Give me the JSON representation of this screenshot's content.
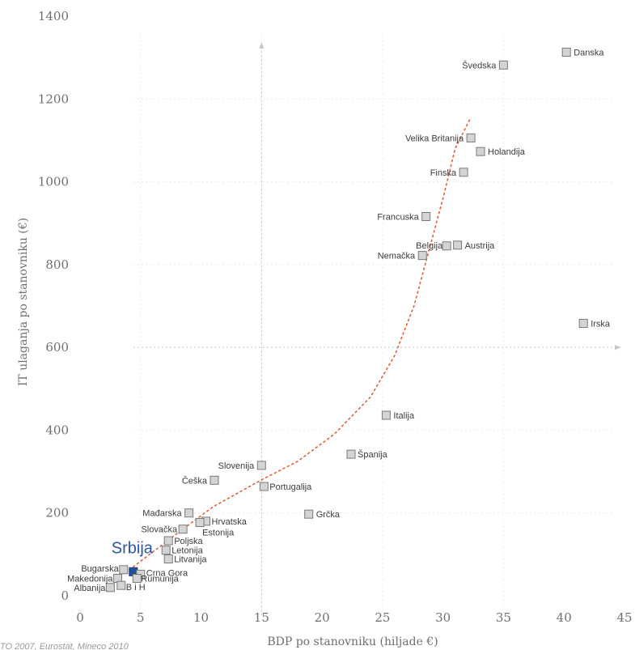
{
  "chart_data": {
    "type": "scatter",
    "xlabel": "BDP po stanovniku (hiljade €)",
    "ylabel": "IT ulaganja po stanovniku (€)",
    "xlim": [
      0,
      45
    ],
    "ylim": [
      0,
      1400
    ],
    "x_ticks": [
      0,
      5,
      10,
      15,
      20,
      25,
      30,
      35,
      40,
      45
    ],
    "y_ticks": [
      0,
      200,
      400,
      600,
      800,
      1000,
      1200,
      1400
    ],
    "grid": false,
    "points": [
      {
        "label": "Danska",
        "x": 40.2,
        "y": 1313
      },
      {
        "label": "Švedska",
        "x": 35.0,
        "y": 1282
      },
      {
        "label": "Velika Britanija",
        "x": 32.3,
        "y": 1106
      },
      {
        "label": "Holandija",
        "x": 33.1,
        "y": 1073
      },
      {
        "label": "Finska",
        "x": 31.7,
        "y": 1023
      },
      {
        "label": "Francuska",
        "x": 28.6,
        "y": 916
      },
      {
        "label": "Belgija",
        "x": 30.3,
        "y": 845
      },
      {
        "label": "Austrija",
        "x": 31.2,
        "y": 847
      },
      {
        "label": "Nemačka",
        "x": 28.3,
        "y": 822
      },
      {
        "label": "Irska",
        "x": 41.6,
        "y": 658
      },
      {
        "label": "Italija",
        "x": 25.3,
        "y": 436
      },
      {
        "label": "Španija",
        "x": 22.4,
        "y": 342
      },
      {
        "label": "Slovenija",
        "x": 15.0,
        "y": 315
      },
      {
        "label": "Češka",
        "x": 11.1,
        "y": 279
      },
      {
        "label": "Portugalija",
        "x": 15.2,
        "y": 264
      },
      {
        "label": "Grčka",
        "x": 18.9,
        "y": 197
      },
      {
        "label": "Mađarska",
        "x": 9.0,
        "y": 200
      },
      {
        "label": "Hrvatska",
        "x": 10.4,
        "y": 180
      },
      {
        "label": "Estonija",
        "x": 9.9,
        "y": 177
      },
      {
        "label": "Slovačka",
        "x": 8.5,
        "y": 161
      },
      {
        "label": "Poljska",
        "x": 7.3,
        "y": 133
      },
      {
        "label": "Letonija",
        "x": 7.1,
        "y": 110
      },
      {
        "label": "Litvanija",
        "x": 7.3,
        "y": 89
      },
      {
        "label": "Srbija",
        "x": 4.4,
        "y": 58,
        "highlight": true
      },
      {
        "label": "Bugarska",
        "x": 3.6,
        "y": 63
      },
      {
        "label": "Crna Gora",
        "x": 5.0,
        "y": 52
      },
      {
        "label": "Rumunija",
        "x": 4.7,
        "y": 42
      },
      {
        "label": "Makedonija",
        "x": 3.1,
        "y": 42
      },
      {
        "label": "Albanija",
        "x": 2.5,
        "y": 20
      },
      {
        "label": "B i H",
        "x": 3.4,
        "y": 25
      }
    ],
    "trendline": [
      [
        4.4,
        70
      ],
      [
        8,
        150
      ],
      [
        11,
        215
      ],
      [
        15,
        280
      ],
      [
        18,
        325
      ],
      [
        21,
        390
      ],
      [
        24,
        480
      ],
      [
        26,
        580
      ],
      [
        27.6,
        700
      ],
      [
        28.8,
        830
      ],
      [
        30,
        960
      ],
      [
        31,
        1080
      ],
      [
        32.2,
        1150
      ]
    ]
  },
  "source": "TO 2007, Eurostat, Mineco 2010"
}
